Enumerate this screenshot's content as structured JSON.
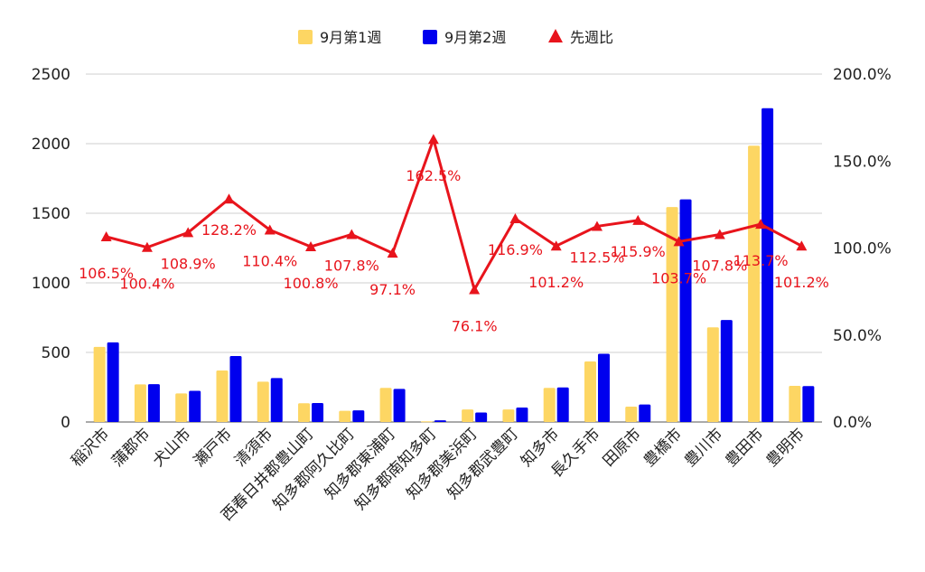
{
  "chart_data": {
    "type": "bar",
    "categories": [
      "稲沢市",
      "蒲郡市",
      "犬山市",
      "瀬戸市",
      "清須市",
      "西春日井郡豊山町",
      "知多郡阿久比町",
      "知多郡東浦町",
      "知多郡南知多町",
      "知多郡美浜町",
      "知多郡武豊町",
      "知多市",
      "長久手市",
      "田原市",
      "豊橋市",
      "豊川市",
      "豊田市",
      "豊明市"
    ],
    "series": [
      {
        "name": "9月第1週",
        "kind": "bar",
        "axis": "left",
        "color": "#fdd663",
        "values": [
          540,
          270,
          205,
          370,
          290,
          135,
          80,
          245,
          5,
          90,
          90,
          245,
          435,
          110,
          1545,
          680,
          1985,
          260
        ]
      },
      {
        "name": "9月第2週",
        "kind": "bar",
        "axis": "left",
        "color": "#0000ee",
        "values": [
          572,
          272,
          224,
          474,
          316,
          136,
          84,
          238,
          12,
          68,
          104,
          248,
          490,
          126,
          1600,
          733,
          2255,
          258
        ]
      },
      {
        "name": "先週比",
        "kind": "line",
        "axis": "right",
        "color": "#e8141c",
        "marker": "triangle",
        "values": [
          106.5,
          100.4,
          108.9,
          128.2,
          110.4,
          100.8,
          107.8,
          97.1,
          162.5,
          76.1,
          116.9,
          101.2,
          112.5,
          115.9,
          103.7,
          107.8,
          113.7,
          101.2
        ],
        "labels": [
          "106.5%",
          "100.4%",
          "108.9%",
          "128.2%",
          "110.4%",
          "100.8%",
          "107.8%",
          "97.1%",
          "162.5%",
          "76.1%",
          "116.9%",
          "101.2%",
          "112.5%",
          "115.9%",
          "103.7%",
          "107.8%",
          "113.7%",
          "101.2%"
        ]
      }
    ],
    "y_left": {
      "min": 0,
      "max": 2500,
      "ticks": [
        0,
        500,
        1000,
        1500,
        2000,
        2500
      ]
    },
    "y_right": {
      "min": 0,
      "max": 200,
      "ticks": [
        "0.0%",
        "50.0%",
        "100.0%",
        "150.0%",
        "200.0%"
      ]
    },
    "legend_position": "top",
    "grid": true,
    "title": "",
    "xlabel": "",
    "ylabel": ""
  }
}
